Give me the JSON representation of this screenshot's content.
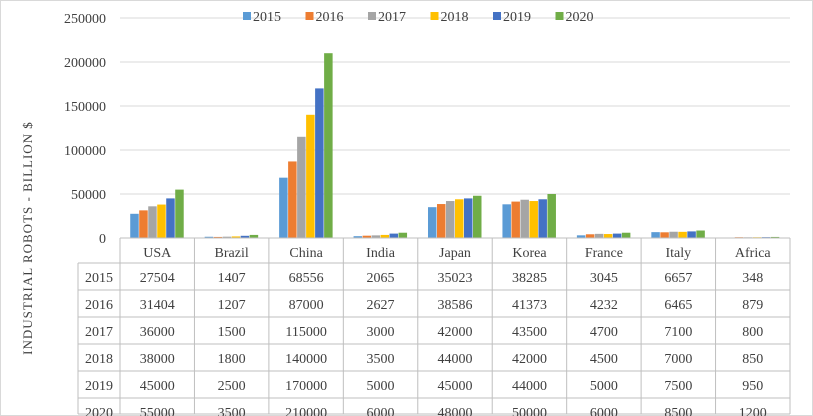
{
  "chart_data": {
    "type": "bar",
    "title": "",
    "xlabel": "",
    "ylabel": "INDUSTRIAL ROBOTS - BILLION $",
    "ylim": [
      0,
      250000
    ],
    "yticks": [
      "0",
      "50000",
      "100000",
      "150000",
      "200000",
      "250000"
    ],
    "grid": true,
    "legend_position": "top",
    "categories": [
      "USA",
      "Brazil",
      "China",
      "India",
      "Japan",
      "Korea",
      "France",
      "Italy",
      "Africa"
    ],
    "series": [
      {
        "name": "2015",
        "color": "#5B9BD5",
        "values": [
          27504,
          1407,
          68556,
          2065,
          35023,
          38285,
          3045,
          6657,
          348
        ]
      },
      {
        "name": "2016",
        "color": "#ED7D31",
        "values": [
          31404,
          1207,
          87000,
          2627,
          38586,
          41373,
          4232,
          6465,
          879
        ]
      },
      {
        "name": "2017",
        "color": "#A5A5A5",
        "values": [
          36000,
          1500,
          115000,
          3000,
          42000,
          43500,
          4700,
          7100,
          800
        ]
      },
      {
        "name": "2018",
        "color": "#FFC000",
        "values": [
          38000,
          1800,
          140000,
          3500,
          44000,
          42000,
          4500,
          7000,
          850
        ]
      },
      {
        "name": "2019",
        "color": "#4472C4",
        "values": [
          45000,
          2500,
          170000,
          5000,
          45000,
          44000,
          5000,
          7500,
          950
        ]
      },
      {
        "name": "2020",
        "color": "#70AD47",
        "values": [
          55000,
          3500,
          210000,
          6000,
          48000,
          50000,
          6000,
          8500,
          1200
        ]
      }
    ],
    "data_table": true
  }
}
